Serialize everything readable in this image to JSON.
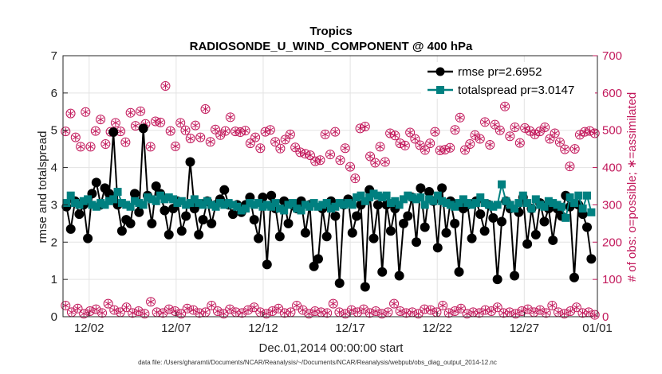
{
  "chart_data": {
    "type": "line",
    "title": "Tropics",
    "subtitle": "RADIOSONDE_U_WIND_COMPONENT @ 400 hPa",
    "xlabel": "Dec.01,2014 00:00:00 start",
    "ylabel_left": "rmse and totalspread",
    "ylabel_right": "# of obs: o=possible; ∗=assimilated",
    "footnote": "data file: /Users/gharamti/Documents/NCAR/Reanalysis/~/Documents/NCAR/Reanalysis/webpub/obs_diag_output_2014-12.nc",
    "xlim": [
      0.5,
      31.2
    ],
    "ylim_left": [
      0,
      7
    ],
    "ylim_right": [
      0,
      700
    ],
    "yticks_left": [
      "0",
      "1",
      "2",
      "3",
      "4",
      "5",
      "6",
      "7"
    ],
    "yticks_right": [
      "0",
      "100",
      "200",
      "300",
      "400",
      "500",
      "600",
      "700"
    ],
    "xticks": [
      {
        "label": "12/02",
        "value": 2
      },
      {
        "label": "12/07",
        "value": 7
      },
      {
        "label": "12/12",
        "value": 12
      },
      {
        "label": "12/17",
        "value": 17
      },
      {
        "label": "12/22",
        "value": 22
      },
      {
        "label": "12/27",
        "value": 27
      },
      {
        "label": "01/01",
        "value": 32
      }
    ],
    "grid": true,
    "legend_position": "top-right",
    "colors": {
      "rmse": "#000000",
      "totalspread": "#008080",
      "obs": "#c2185b",
      "grid": "#e3e3e3"
    },
    "series": [
      {
        "name": "rmse pr=2.6952",
        "axis": "left",
        "values": [
          2.95,
          2.35,
          3.1,
          2.75,
          3.0,
          2.1,
          3.3,
          3.6,
          3.0,
          3.45,
          3.3,
          4.95,
          3.0,
          2.3,
          2.6,
          2.5,
          3.3,
          2.8,
          5.05,
          3.25,
          2.5,
          3.5,
          3.3,
          2.85,
          2.2,
          2.9,
          3.1,
          2.3,
          2.7,
          4.15,
          2.9,
          2.2,
          2.6,
          3.1,
          2.5,
          3.0,
          3.15,
          3.4,
          3.0,
          2.75,
          3.0,
          2.8,
          3.0,
          3.2,
          2.6,
          2.1,
          3.2,
          1.4,
          3.25,
          2.9,
          2.15,
          3.1,
          2.5,
          3.0,
          2.9,
          3.1,
          2.25,
          3.0,
          1.35,
          1.55,
          2.9,
          2.15,
          3.1,
          2.7,
          0.9,
          3.0,
          3.15,
          2.25,
          2.7,
          3.0,
          0.8,
          3.4,
          2.1,
          3.0,
          1.2,
          3.0,
          2.3,
          2.9,
          1.1,
          2.5,
          2.7,
          3.2,
          2.0,
          3.45,
          2.4,
          3.35,
          3.1,
          1.85,
          3.45,
          2.25,
          3.1,
          2.5,
          1.2,
          2.9,
          3.0,
          2.1,
          3.1,
          2.75,
          2.3,
          3.0,
          2.65,
          1.0,
          2.55,
          3.1,
          2.9,
          1.1,
          2.8,
          3.2,
          1.95,
          2.9,
          2.2,
          3.05,
          2.55,
          2.9,
          2.05,
          2.9,
          2.7,
          3.25,
          2.95,
          1.05,
          3.0,
          2.75,
          2.4,
          1.55
        ]
      },
      {
        "name": "totalspread pr=3.0147",
        "axis": "left",
        "values": [
          3.05,
          3.25,
          3.05,
          3.0,
          3.1,
          3.15,
          3.0,
          2.95,
          3.05,
          3.0,
          3.1,
          3.15,
          3.35,
          3.05,
          3.0,
          2.95,
          3.1,
          3.05,
          3.0,
          3.2,
          3.15,
          3.1,
          3.25,
          3.15,
          3.2,
          3.15,
          3.05,
          3.1,
          3.0,
          3.05,
          3.15,
          3.05,
          3.0,
          3.1,
          3.0,
          2.95,
          3.05,
          3.0,
          3.05,
          3.0,
          2.95,
          2.85,
          2.9,
          3.05,
          3.0,
          3.05,
          2.95,
          3.0,
          2.95,
          3.05,
          2.9,
          2.85,
          3.0,
          3.05,
          2.9,
          2.85,
          3.0,
          2.95,
          3.05,
          2.95,
          3.0,
          3.05,
          2.9,
          2.95,
          3.05,
          3.0,
          3.05,
          3.0,
          3.2,
          3.25,
          3.1,
          3.2,
          3.3,
          3.25,
          3.2,
          3.25,
          3.05,
          3.1,
          3.0,
          3.15,
          3.25,
          3.2,
          3.15,
          3.2,
          3.0,
          3.15,
          3.1,
          3.25,
          3.1,
          3.05,
          3.0,
          2.95,
          3.05,
          3.15,
          3.05,
          3.0,
          3.05,
          3.2,
          3.05,
          3.0,
          2.95,
          3.0,
          3.55,
          3.1,
          3.0,
          2.9,
          3.05,
          3.25,
          3.05,
          2.9,
          3.15,
          3.0,
          2.95,
          3.1,
          3.05,
          3.0,
          2.95,
          2.65,
          3.2,
          3.05,
          3.25,
          2.9,
          3.25,
          2.8
        ]
      },
      {
        "name": "obs possible (high)",
        "axis": "right",
        "values": [
          497,
          545,
          481,
          456,
          549,
          456,
          498,
          529,
          463,
          496,
          520,
          497,
          468,
          547,
          512,
          551,
          517,
          456,
          524,
          521,
          619,
          498,
          457,
          520,
          500,
          478,
          513,
          481,
          557,
          469,
          502,
          487,
          498,
          535,
          497,
          495,
          499,
          465,
          481,
          452,
          496,
          501,
          469,
          451,
          475,
          489,
          454,
          441,
          437,
          433,
          417,
          420,
          489,
          435,
          496,
          420,
          452,
          402,
          371,
          505,
          510,
          430,
          413,
          456,
          415,
          492,
          486,
          465,
          459,
          494,
          477,
          460,
          447,
          465,
          496,
          446,
          448,
          453,
          501,
          534,
          447,
          463,
          487,
          477,
          522,
          461,
          515,
          500,
          564,
          484,
          508,
          466,
          506,
          498,
          489,
          497,
          508,
          477,
          492,
          468,
          449,
          403,
          450,
          488,
          496,
          498,
          492
        ]
      },
      {
        "name": "obs possible (low)",
        "axis": "right",
        "values": [
          30,
          12,
          22,
          8,
          15,
          20,
          10,
          35,
          18,
          12,
          25,
          10,
          15,
          8,
          40,
          12,
          10,
          20,
          15,
          8,
          22,
          18,
          10,
          12,
          30,
          15,
          8,
          20,
          12,
          10,
          18,
          25,
          12,
          8,
          15,
          22,
          10,
          12,
          30,
          18,
          8,
          15,
          12,
          10,
          35,
          12,
          8,
          18,
          12,
          20,
          10,
          15,
          8,
          12,
          35,
          15,
          10,
          12,
          8,
          20,
          18,
          12,
          30,
          10,
          15,
          22,
          8,
          12,
          10,
          18,
          15,
          25,
          10,
          12,
          8,
          15,
          20,
          12,
          18,
          10,
          30,
          12,
          8,
          15,
          25,
          10,
          12,
          5
        ]
      }
    ]
  }
}
